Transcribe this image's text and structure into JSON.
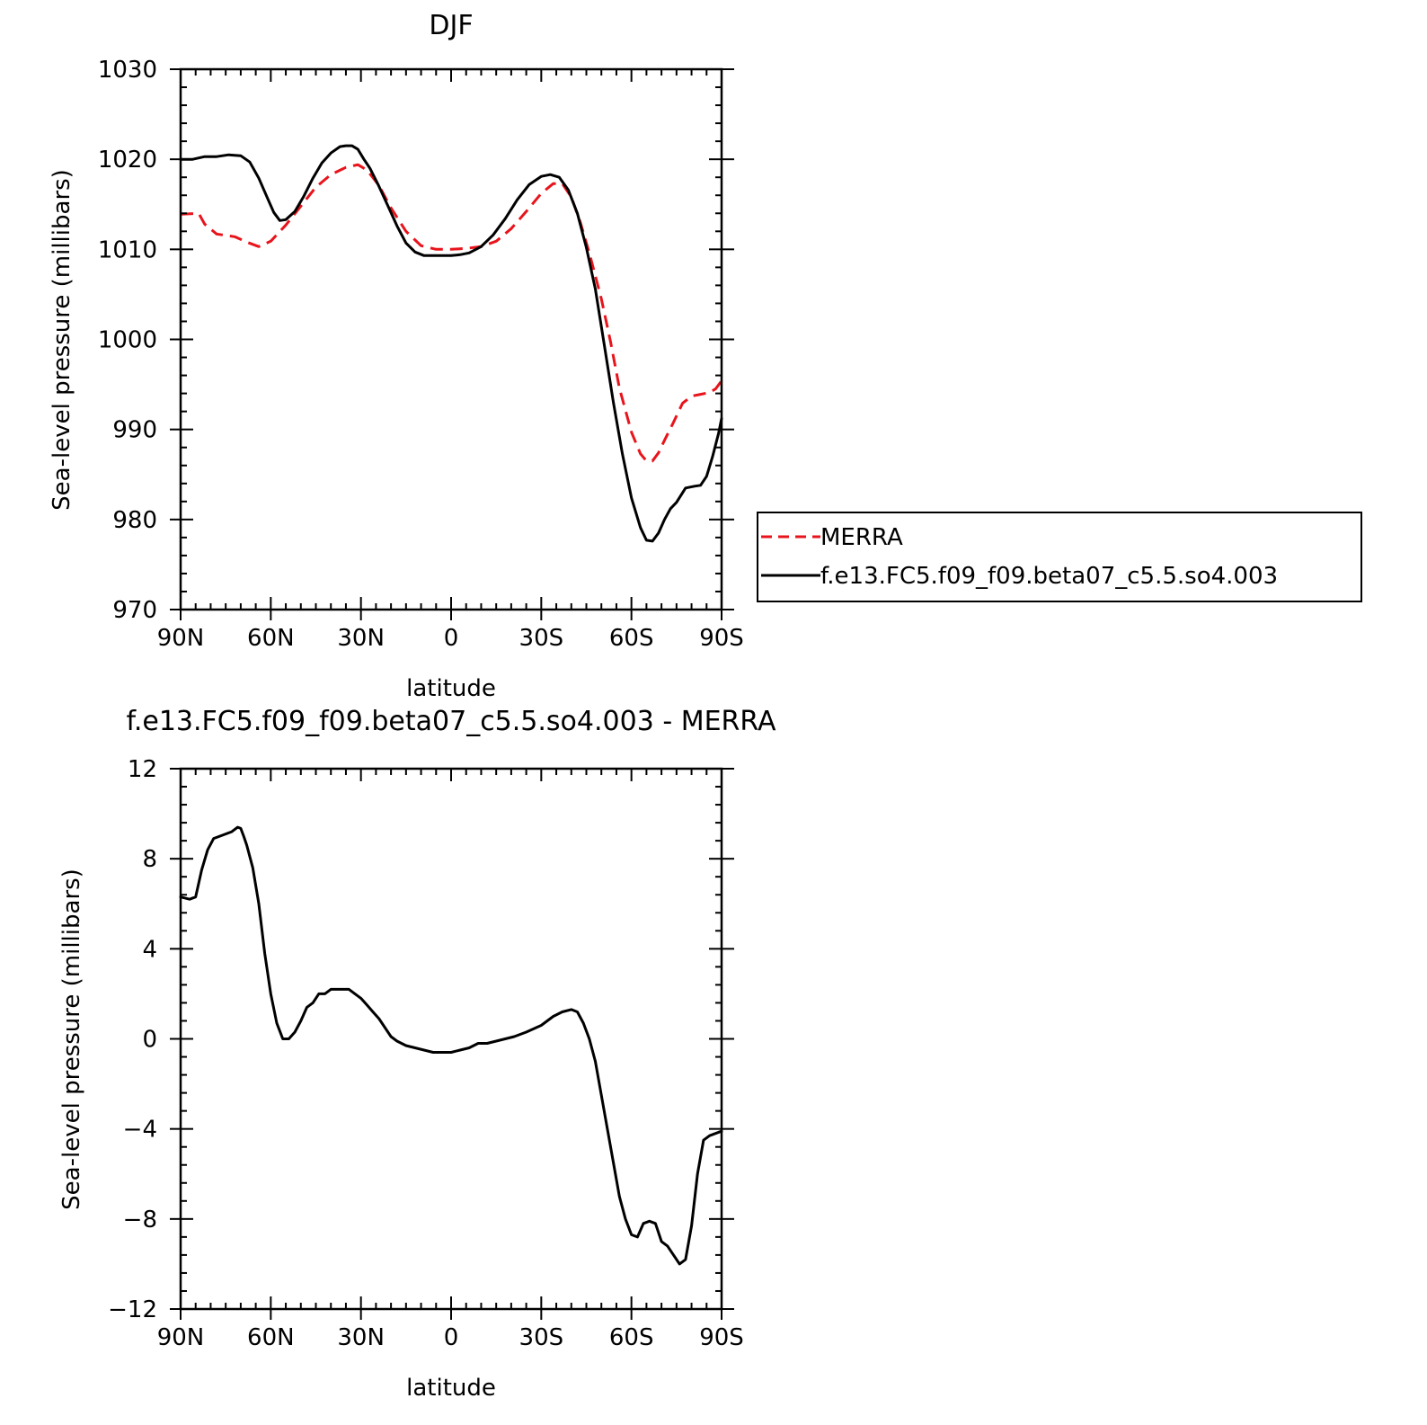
{
  "chart_data": [
    {
      "type": "line",
      "title": "DJF",
      "xlabel": "latitude",
      "ylabel": "Sea-level pressure (millibars)",
      "xlim": [
        90,
        -90
      ],
      "ylim": [
        970,
        1030
      ],
      "x_ticks": [
        90,
        60,
        30,
        0,
        -30,
        -60,
        -90
      ],
      "x_tick_labels": [
        "90N",
        "60N",
        "30N",
        "0",
        "30S",
        "60S",
        "90S"
      ],
      "y_ticks": [
        970,
        980,
        990,
        1000,
        1010,
        1020,
        1030
      ],
      "y_tick_labels": [
        "970",
        "980",
        "990",
        "1000",
        "1010",
        "1020",
        "1030"
      ],
      "grid": false,
      "legend_position": "right-middle",
      "series": [
        {
          "name": "MERRA",
          "color": "#e8141c",
          "dash": "dashed",
          "x": [
            90,
            84,
            82,
            78,
            72,
            68,
            64,
            60,
            55,
            50,
            45,
            40,
            35,
            31,
            28,
            24,
            20,
            15,
            10,
            5,
            0,
            -5,
            -10,
            -15,
            -20,
            -25,
            -30,
            -34,
            -37,
            -40,
            -43,
            -46,
            -50,
            -53,
            -56,
            -60,
            -63,
            -65,
            -67,
            -69,
            -71,
            -74,
            -77,
            -80,
            -83,
            -86,
            -88,
            -90
          ],
          "values": [
            1013.9,
            1014.0,
            1012.8,
            1011.7,
            1011.4,
            1010.8,
            1010.3,
            1010.9,
            1012.7,
            1014.8,
            1016.9,
            1018.3,
            1019.1,
            1019.4,
            1018.8,
            1017.1,
            1014.6,
            1012.0,
            1010.4,
            1010.0,
            1010.0,
            1010.1,
            1010.3,
            1010.9,
            1012.3,
            1014.2,
            1016.2,
            1017.3,
            1017.3,
            1015.8,
            1013.0,
            1009.6,
            1004.5,
            999.8,
            994.6,
            989.7,
            987.3,
            986.5,
            986.5,
            987.4,
            988.8,
            990.8,
            992.9,
            993.7,
            993.9,
            994.1,
            994.5,
            995.4
          ]
        },
        {
          "name": "f.e13.FC5.f09_f09.beta07_c5.5.so4.003",
          "color": "#000000",
          "dash": "solid",
          "x": [
            90,
            86,
            82,
            78,
            74,
            70,
            67,
            64,
            61,
            59,
            57,
            55,
            52,
            49,
            46,
            43,
            40,
            37,
            35,
            33,
            31,
            29,
            27,
            24,
            21,
            18,
            15,
            12,
            9,
            6,
            3,
            0,
            -3,
            -6,
            -10,
            -14,
            -18,
            -22,
            -26,
            -30,
            -33,
            -36,
            -39,
            -42,
            -45,
            -48,
            -51,
            -54,
            -57,
            -60,
            -63,
            -65,
            -67,
            -69,
            -71,
            -73,
            -75,
            -78,
            -81,
            -83,
            -85,
            -87,
            -89,
            -90
          ],
          "values": [
            1020.0,
            1020.0,
            1020.3,
            1020.3,
            1020.5,
            1020.4,
            1019.7,
            1017.9,
            1015.6,
            1014.1,
            1013.2,
            1013.3,
            1014.2,
            1015.9,
            1017.9,
            1019.6,
            1020.7,
            1021.4,
            1021.5,
            1021.5,
            1021.1,
            1020.0,
            1019.0,
            1017.0,
            1014.8,
            1012.6,
            1010.7,
            1009.7,
            1009.3,
            1009.3,
            1009.3,
            1009.3,
            1009.4,
            1009.6,
            1010.3,
            1011.6,
            1013.4,
            1015.5,
            1017.2,
            1018.1,
            1018.3,
            1018.0,
            1016.6,
            1014.0,
            1010.2,
            1005.6,
            999.3,
            993.0,
            987.3,
            982.4,
            979.1,
            977.7,
            977.6,
            978.5,
            980.0,
            981.2,
            981.9,
            983.5,
            983.7,
            983.8,
            984.8,
            987.0,
            989.6,
            991.2
          ]
        }
      ]
    },
    {
      "type": "line",
      "title": "f.e13.FC5.f09_f09.beta07_c5.5.so4.003 - MERRA",
      "xlabel": "latitude",
      "ylabel": "Sea-level pressure (millibars)",
      "xlim": [
        90,
        -90
      ],
      "ylim": [
        -12,
        12
      ],
      "x_ticks": [
        90,
        60,
        30,
        0,
        -30,
        -60,
        -90
      ],
      "x_tick_labels": [
        "90N",
        "60N",
        "30N",
        "0",
        "30S",
        "60S",
        "90S"
      ],
      "y_ticks": [
        -12,
        -8,
        -4,
        0,
        4,
        8,
        12
      ],
      "y_tick_labels": [
        "−12",
        "−8",
        "−4",
        "0",
        "4",
        "8",
        "12"
      ],
      "grid": false,
      "series": [
        {
          "color": "#000000",
          "dash": "solid",
          "x": [
            90,
            87,
            85,
            83,
            81,
            79,
            77,
            75,
            73,
            71,
            70,
            69,
            68,
            66,
            64,
            62,
            60,
            58,
            56,
            54,
            52,
            50,
            48,
            46,
            44,
            42,
            40,
            38,
            36,
            34,
            32,
            30,
            28,
            26,
            24,
            22,
            20,
            18,
            15,
            12,
            9,
            6,
            3,
            0,
            -3,
            -6,
            -9,
            -12,
            -15,
            -18,
            -21,
            -25,
            -30,
            -34,
            -37,
            -40,
            -42,
            -44,
            -46,
            -48,
            -50,
            -52,
            -54,
            -56,
            -58,
            -60,
            -62,
            -64,
            -66,
            -68,
            -70,
            -72,
            -74,
            -76,
            -78,
            -80,
            -82,
            -84,
            -86,
            -88,
            -90
          ],
          "values": [
            6.3,
            6.2,
            6.3,
            7.5,
            8.4,
            8.9,
            9.0,
            9.1,
            9.2,
            9.4,
            9.35,
            9.0,
            8.6,
            7.6,
            6.0,
            3.8,
            2.0,
            0.7,
            0.0,
            0.0,
            0.3,
            0.8,
            1.4,
            1.6,
            2.0,
            2.0,
            2.2,
            2.2,
            2.2,
            2.2,
            2.0,
            1.8,
            1.5,
            1.2,
            0.9,
            0.5,
            0.1,
            -0.1,
            -0.3,
            -0.4,
            -0.5,
            -0.6,
            -0.6,
            -0.6,
            -0.5,
            -0.4,
            -0.2,
            -0.2,
            -0.1,
            0.0,
            0.1,
            0.3,
            0.6,
            1.0,
            1.2,
            1.3,
            1.2,
            0.7,
            0.0,
            -1.0,
            -2.5,
            -4.0,
            -5.5,
            -7.0,
            -8.0,
            -8.7,
            -8.8,
            -8.2,
            -8.1,
            -8.2,
            -9.0,
            -9.2,
            -9.6,
            -10.0,
            -9.8,
            -8.3,
            -6.0,
            -4.5,
            -4.3,
            -4.2,
            -4.1
          ]
        }
      ]
    }
  ]
}
